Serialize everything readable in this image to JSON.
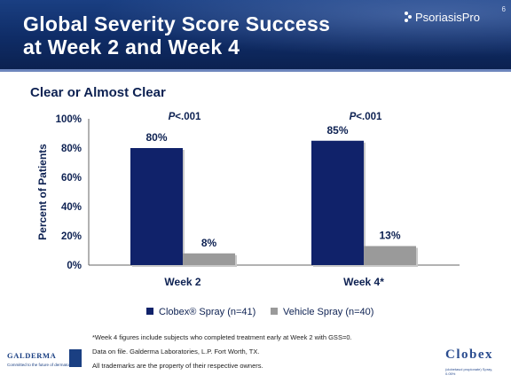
{
  "header": {
    "title_line1": "Global Severity Score Success",
    "title_line2": "at Week 2 and Week 4",
    "slide_number": "6",
    "brand": "PsoriasisPro"
  },
  "subtitle": "Clear or Almost Clear",
  "colors": {
    "clobex": "#10226a",
    "vehicle": "#9a9a9a",
    "header": "#133579",
    "text": "#0d2152"
  },
  "chart_data": {
    "type": "bar",
    "categories": [
      "Week 2",
      "Week 4*"
    ],
    "series": [
      {
        "name": "Clobex® Spray (n=41)",
        "values": [
          80,
          85
        ],
        "labels": [
          "80%",
          "85%"
        ]
      },
      {
        "name": "Vehicle Spray (n=40)",
        "values": [
          8,
          13
        ],
        "labels": [
          "8%",
          "13%"
        ]
      }
    ],
    "ylabel": "Percent of Patients",
    "ylim": [
      0,
      100
    ],
    "yticks": [
      "0%",
      "20%",
      "40%",
      "60%",
      "80%",
      "100%"
    ],
    "pvalues": [
      "P<.001",
      "P<.001"
    ],
    "legend_position": "bottom"
  },
  "footnotes": [
    "*Week 4 figures include subjects who completed treatment early at Week 2 with GSS=0.",
    "Data on file. Galderma Laboratories, L.P. Fort Worth, TX.",
    "All trademarks are the property of their respective owners."
  ],
  "logos": {
    "left_name": "GALDERMA",
    "left_tagline": "Committed to the future of dermatology",
    "right_name": "Clobex",
    "right_sub": "(clobetasol propionate) Spray, 0.05%"
  }
}
